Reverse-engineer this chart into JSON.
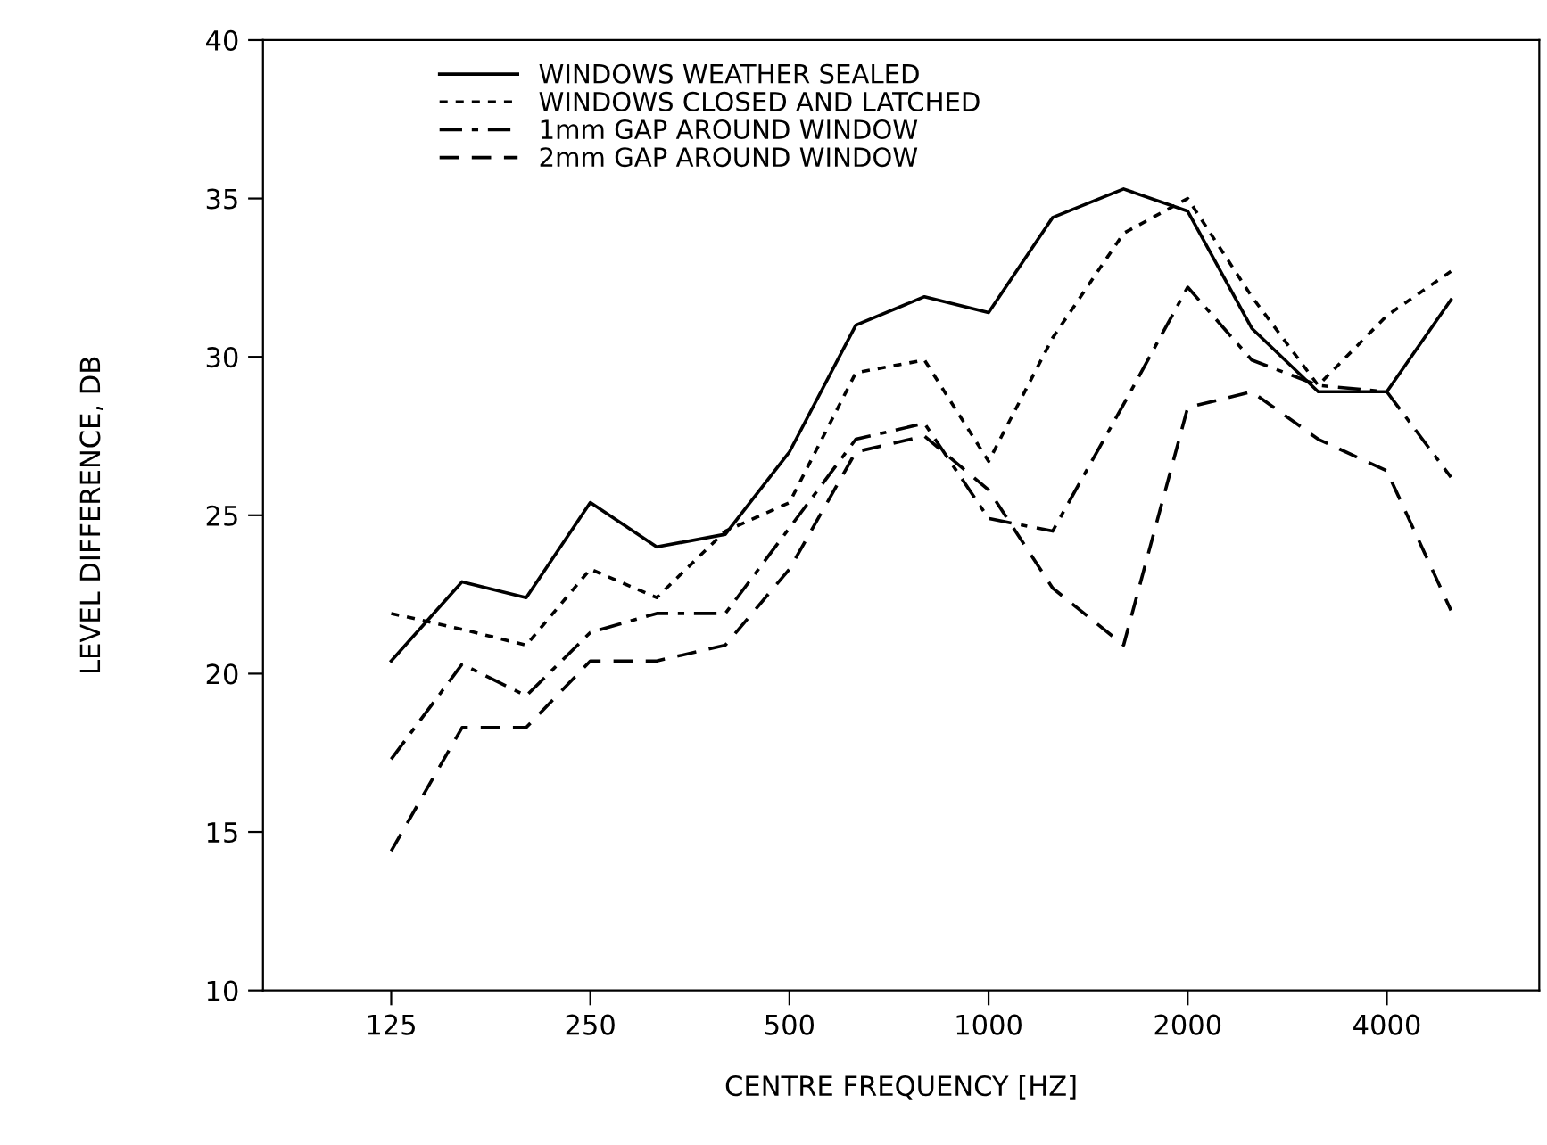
{
  "chart_data": {
    "type": "line",
    "xlabel": "CENTRE FREQUENCY [HZ]",
    "ylabel": "LEVEL DIFFERENCE, DB",
    "x": [
      125,
      160,
      200,
      250,
      315,
      400,
      500,
      630,
      800,
      1000,
      1250,
      1600,
      2000,
      2500,
      3150,
      4000,
      5000
    ],
    "series": [
      {
        "name": "WINDOWS WEATHER SEALED",
        "color": "#000000",
        "line_style": "solid",
        "values": [
          20.4,
          22.9,
          22.4,
          25.4,
          24.0,
          24.4,
          27.0,
          31.0,
          31.9,
          31.4,
          34.4,
          35.3,
          34.6,
          30.9,
          28.9,
          28.9,
          31.8
        ]
      },
      {
        "name": "WINDOWS CLOSED AND LATCHED",
        "color": "#000000",
        "line_style": "dotted",
        "values": [
          21.9,
          21.4,
          20.9,
          23.3,
          22.4,
          24.5,
          25.4,
          29.5,
          29.9,
          26.7,
          30.6,
          33.9,
          35.0,
          31.9,
          29.1,
          31.3,
          32.7
        ]
      },
      {
        "name": "1mm GAP AROUND WINDOW",
        "color": "#000000",
        "line_style": "dashdot",
        "values": [
          17.3,
          20.3,
          19.3,
          21.3,
          21.9,
          21.9,
          24.6,
          27.4,
          27.9,
          24.9,
          24.5,
          28.5,
          32.2,
          29.9,
          29.1,
          28.9,
          26.2
        ]
      },
      {
        "name": "2mm GAP AROUND WINDOW",
        "color": "#000000",
        "line_style": "dashed",
        "values": [
          14.4,
          18.3,
          18.3,
          20.4,
          20.4,
          20.9,
          23.3,
          27.0,
          27.5,
          25.8,
          22.7,
          20.9,
          28.4,
          28.9,
          27.4,
          26.4,
          22.0
        ]
      }
    ],
    "log": "x",
    "xlim": [
      80,
      6800
    ],
    "xticks": [
      125,
      250,
      500,
      1000,
      2000,
      4000
    ],
    "ylim": [
      10,
      40
    ],
    "yticks": [
      10,
      15,
      20,
      25,
      30,
      35,
      40
    ],
    "grid": false,
    "legend": "top left"
  }
}
